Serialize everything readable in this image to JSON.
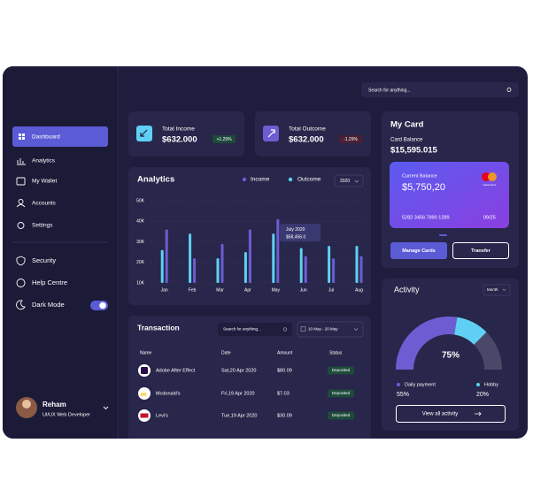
{
  "search_placeholder": "Search for anything...",
  "sidebar": {
    "menu": [
      "Dashboard",
      "Analytics",
      "My Wallet",
      "Accounts",
      "Settings"
    ],
    "menu_bottom": [
      "Security",
      "Help Centre",
      "Dark Mode"
    ],
    "profile": {
      "name": "Reham",
      "role": "UI/UX Web Developer"
    }
  },
  "stats": [
    {
      "label": "Total Income",
      "value": "$632.000",
      "change": "+1.29%"
    },
    {
      "label": "Total Outcome",
      "value": "$632.000",
      "change": "-1.29%"
    }
  ],
  "chart_data": [
    {
      "type": "bar",
      "title": "Analytics",
      "period": "2020",
      "categories": [
        "Jan",
        "Feb",
        "Mar",
        "Apr",
        "May",
        "Jun",
        "Jul",
        "Aug"
      ],
      "series": [
        {
          "name": "Income",
          "color": "#6c5dd3",
          "values": [
            36000,
            22000,
            29000,
            36000,
            41000,
            23000,
            22000,
            23000
          ]
        },
        {
          "name": "Outcome",
          "color": "#5fd0f3",
          "values": [
            26000,
            34000,
            22000,
            25000,
            34000,
            27000,
            28000,
            28000
          ]
        }
      ],
      "ylim": [
        10000,
        50000
      ],
      "yticks": [
        {
          "value": 10000,
          "label": "10K"
        },
        {
          "value": 20000,
          "label": "20K"
        },
        {
          "value": 30000,
          "label": "30K"
        },
        {
          "value": 40000,
          "label": "40K"
        },
        {
          "value": 50000,
          "label": "50K"
        }
      ],
      "grid": true,
      "annotation": {
        "title": "July 2020",
        "text": "$58,456.0"
      }
    },
    {
      "type": "gauge",
      "title": "Activity",
      "period": "Month",
      "center": {
        "value": 75,
        "label": "75%"
      },
      "series": [
        {
          "name": "Daily payment",
          "color": "#6c5dd3",
          "values": [
            55
          ],
          "value_labels": [
            "55%"
          ]
        },
        {
          "name": "Hobby",
          "color": "#5fd0f3",
          "values": [
            20
          ],
          "value_labels": [
            "20%"
          ]
        }
      ]
    }
  ],
  "transactions": {
    "title": "Transaction",
    "search_placeholder": "Search for anything...",
    "date_range": "10 May - 20 May",
    "columns": [
      "Name",
      "Date",
      "Amount",
      "Status"
    ],
    "rows": [
      [
        "Adobe After Effect",
        "Sat,20 Apr 2020",
        "$80.09",
        "Deposited"
      ],
      [
        "Mcdonald's",
        "Fri,19 Apr 2020",
        "$7.03",
        "Deposited"
      ],
      [
        "Levi's",
        "Tue,19 Apr 2020",
        "$30.09",
        "Deposited"
      ]
    ]
  },
  "my_card": {
    "title": "My Card",
    "balance_label": "Card Balance",
    "balance": "$15,595.015",
    "card": {
      "label": "Current Balance",
      "amount": "$5,750,20",
      "brand": "mastercard",
      "number": "5282 3456 7890 1289",
      "expiry": "09/25"
    },
    "buttons": [
      "Manage Cards",
      "Transfer"
    ]
  },
  "activity_button": "View all activity"
}
